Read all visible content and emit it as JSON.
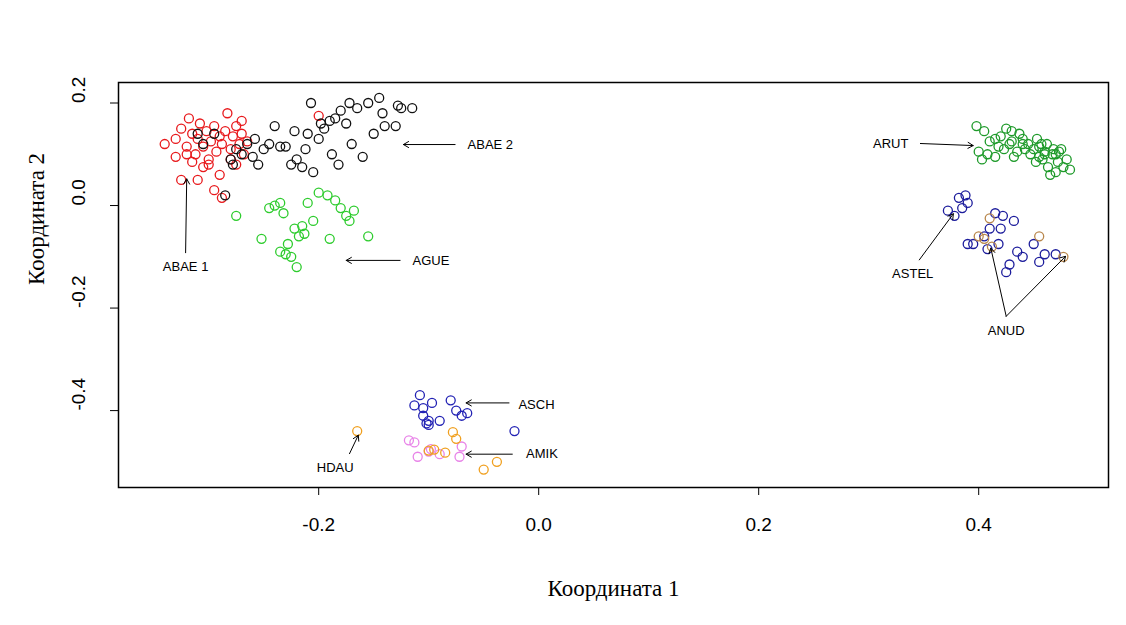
{
  "chart_data": {
    "type": "scatter",
    "x_label": "Координата 1",
    "y_label": "Координата 2",
    "xlim": [
      -0.382,
      0.518
    ],
    "ylim": [
      -0.55,
      0.24
    ],
    "xticks": [
      -0.2,
      {
        "value": 0,
        "label": "0.0"
      },
      0.2,
      0.4
    ],
    "yticks": [
      -0.4,
      -0.2,
      {
        "value": 0,
        "label": "0.0"
      },
      0.2
    ],
    "series": [
      {
        "name": "ABAE 1",
        "color": "#e8191c",
        "marker": "circle",
        "values": [
          [
            -0.34,
            0.12
          ],
          [
            -0.325,
            0.15
          ],
          [
            -0.32,
            0.115
          ],
          [
            -0.318,
            0.17
          ],
          [
            -0.315,
            0.14
          ],
          [
            -0.312,
            0.1
          ],
          [
            -0.31,
            0.13
          ],
          [
            -0.308,
            0.16
          ],
          [
            -0.305,
            0.115
          ],
          [
            -0.302,
            0.145
          ],
          [
            -0.3,
            0.09
          ],
          [
            -0.298,
            0.125
          ],
          [
            -0.295,
            0.155
          ],
          [
            -0.293,
            0.105
          ],
          [
            -0.29,
            0.135
          ],
          [
            -0.288,
            0.12
          ],
          [
            -0.285,
            0.145
          ],
          [
            -0.283,
            0.18
          ],
          [
            -0.28,
            0.11
          ],
          [
            -0.278,
            0.135
          ],
          [
            -0.275,
            0.155
          ],
          [
            -0.272,
            0.12
          ],
          [
            -0.27,
            0.14
          ],
          [
            -0.268,
            0.1
          ],
          [
            -0.265,
            0.125
          ],
          [
            -0.325,
            0.05
          ],
          [
            -0.31,
            0.05
          ],
          [
            -0.3,
            0.08
          ],
          [
            -0.295,
            0.03
          ],
          [
            -0.288,
            0.015
          ],
          [
            -0.32,
            0.1
          ],
          [
            -0.305,
            0.075
          ],
          [
            -0.29,
            0.06
          ],
          [
            -0.28,
            0.09
          ],
          [
            -0.275,
            0.08
          ],
          [
            -0.33,
            0.095
          ],
          [
            -0.33,
            0.13
          ],
          [
            -0.315,
            0.085
          ],
          [
            -0.27,
            0.165
          ],
          [
            -0.2,
            0.175
          ]
        ]
      },
      {
        "name": "ABAE 2",
        "color": "#111111",
        "marker": "circle",
        "values": [
          [
            -0.285,
            0.02
          ],
          [
            -0.28,
            0.09
          ],
          [
            -0.278,
            0.08
          ],
          [
            -0.275,
            0.11
          ],
          [
            -0.27,
            0.1
          ],
          [
            -0.265,
            0.12
          ],
          [
            -0.26,
            0.095
          ],
          [
            -0.258,
            0.13
          ],
          [
            -0.255,
            0.08
          ],
          [
            -0.25,
            0.11
          ],
          [
            -0.245,
            0.12
          ],
          [
            -0.24,
            0.155
          ],
          [
            -0.235,
            0.115
          ],
          [
            -0.23,
            0.115
          ],
          [
            -0.225,
            0.08
          ],
          [
            -0.222,
            0.145
          ],
          [
            -0.22,
            0.09
          ],
          [
            -0.215,
            0.075
          ],
          [
            -0.212,
            0.11
          ],
          [
            -0.21,
            0.14
          ],
          [
            -0.207,
            0.2
          ],
          [
            -0.205,
            0.065
          ],
          [
            -0.2,
            0.13
          ],
          [
            -0.198,
            0.16
          ],
          [
            -0.195,
            0.15
          ],
          [
            -0.19,
            0.165
          ],
          [
            -0.188,
            0.1
          ],
          [
            -0.185,
            0.17
          ],
          [
            -0.182,
            0.08
          ],
          [
            -0.18,
            0.185
          ],
          [
            -0.175,
            0.16
          ],
          [
            -0.172,
            0.2
          ],
          [
            -0.17,
            0.12
          ],
          [
            -0.165,
            0.19
          ],
          [
            -0.16,
            0.095
          ],
          [
            -0.155,
            0.2
          ],
          [
            -0.15,
            0.14
          ],
          [
            -0.145,
            0.21
          ],
          [
            -0.142,
            0.18
          ],
          [
            -0.14,
            0.155
          ],
          [
            -0.13,
            0.155
          ],
          [
            -0.128,
            0.195
          ],
          [
            -0.125,
            0.19
          ],
          [
            -0.115,
            0.19
          ],
          [
            -0.31,
            0.14
          ],
          [
            -0.305,
            0.12
          ],
          [
            -0.295,
            0.14
          ]
        ]
      },
      {
        "name": "AGUE",
        "color": "#2ecc2e",
        "marker": "circle",
        "values": [
          [
            -0.275,
            -0.02
          ],
          [
            -0.252,
            -0.065
          ],
          [
            -0.245,
            -0.005
          ],
          [
            -0.24,
            0.0
          ],
          [
            -0.235,
            0.005
          ],
          [
            -0.235,
            -0.09
          ],
          [
            -0.232,
            -0.015
          ],
          [
            -0.23,
            -0.095
          ],
          [
            -0.228,
            -0.075
          ],
          [
            -0.225,
            -0.1
          ],
          [
            -0.222,
            -0.045
          ],
          [
            -0.22,
            -0.12
          ],
          [
            -0.218,
            -0.06
          ],
          [
            -0.215,
            -0.04
          ],
          [
            -0.213,
            -0.055
          ],
          [
            -0.21,
            0.005
          ],
          [
            -0.205,
            -0.03
          ],
          [
            -0.2,
            0.025
          ],
          [
            -0.192,
            0.02
          ],
          [
            -0.19,
            -0.065
          ],
          [
            -0.185,
            0.01
          ],
          [
            -0.18,
            -0.005
          ],
          [
            -0.175,
            -0.02
          ],
          [
            -0.172,
            -0.03
          ],
          [
            -0.168,
            -0.01
          ],
          [
            -0.155,
            -0.06
          ]
        ]
      },
      {
        "name": "ARUT",
        "color": "#1e9a2a",
        "marker": "circle",
        "values": [
          [
            0.398,
            0.155
          ],
          [
            0.4,
            0.105
          ],
          [
            0.403,
            0.09
          ],
          [
            0.405,
            0.145
          ],
          [
            0.408,
            0.1
          ],
          [
            0.41,
            0.125
          ],
          [
            0.415,
            0.095
          ],
          [
            0.418,
            0.115
          ],
          [
            0.42,
            0.135
          ],
          [
            0.423,
            0.11
          ],
          [
            0.425,
            0.15
          ],
          [
            0.428,
            0.12
          ],
          [
            0.43,
            0.125
          ],
          [
            0.432,
            0.095
          ],
          [
            0.435,
            0.105
          ],
          [
            0.437,
            0.14
          ],
          [
            0.44,
            0.13
          ],
          [
            0.442,
            0.11
          ],
          [
            0.445,
            0.12
          ],
          [
            0.447,
            0.1
          ],
          [
            0.45,
            0.11
          ],
          [
            0.452,
            0.085
          ],
          [
            0.453,
            0.13
          ],
          [
            0.455,
            0.115
          ],
          [
            0.457,
            0.12
          ],
          [
            0.458,
            0.09
          ],
          [
            0.46,
            0.105
          ],
          [
            0.462,
            0.12
          ],
          [
            0.463,
            0.075
          ],
          [
            0.465,
            0.06
          ],
          [
            0.467,
            0.1
          ],
          [
            0.468,
            0.11
          ],
          [
            0.47,
            0.065
          ],
          [
            0.472,
            0.085
          ],
          [
            0.473,
            0.105
          ],
          [
            0.475,
            0.11
          ],
          [
            0.477,
            0.075
          ],
          [
            0.48,
            0.09
          ],
          [
            0.483,
            0.07
          ],
          [
            0.43,
            0.145
          ],
          [
            0.44,
            0.12
          ],
          [
            0.46,
            0.1
          ],
          [
            0.455,
            0.095
          ],
          [
            0.47,
            0.1
          ],
          [
            0.415,
            0.13
          ]
        ]
      },
      {
        "name": "ASTEL",
        "color": "#1c1c9c",
        "marker": "circle",
        "values": [
          [
            0.372,
            -0.01
          ],
          [
            0.378,
            -0.02
          ],
          [
            0.382,
            0.015
          ],
          [
            0.385,
            -0.005
          ],
          [
            0.388,
            0.02
          ],
          [
            0.39,
            0.005
          ],
          [
            0.39,
            -0.075
          ],
          [
            0.395,
            -0.075
          ],
          [
            0.405,
            -0.06
          ],
          [
            0.408,
            -0.085
          ],
          [
            0.41,
            -0.045
          ],
          [
            0.415,
            -0.015
          ],
          [
            0.418,
            -0.075
          ],
          [
            0.42,
            -0.045
          ],
          [
            0.422,
            -0.02
          ],
          [
            0.425,
            -0.13
          ],
          [
            0.428,
            -0.115
          ],
          [
            0.432,
            -0.03
          ],
          [
            0.435,
            -0.09
          ],
          [
            0.44,
            -0.1
          ],
          [
            0.45,
            -0.075
          ],
          [
            0.455,
            -0.11
          ],
          [
            0.46,
            -0.095
          ],
          [
            0.47,
            -0.095
          ]
        ]
      },
      {
        "name": "ANUD",
        "color": "#b8864b",
        "marker": "circle",
        "values": [
          [
            0.4,
            -0.06
          ],
          [
            0.405,
            -0.065
          ],
          [
            0.41,
            -0.025
          ],
          [
            0.412,
            -0.08
          ],
          [
            0.455,
            -0.06
          ],
          [
            0.477,
            -0.1
          ]
        ]
      },
      {
        "name": "ASCH",
        "color": "#2222b4",
        "marker": "circle",
        "values": [
          [
            -0.113,
            -0.39
          ],
          [
            -0.108,
            -0.37
          ],
          [
            -0.105,
            -0.41
          ],
          [
            -0.102,
            -0.425
          ],
          [
            -0.1,
            -0.428
          ],
          [
            -0.097,
            -0.385
          ],
          [
            -0.09,
            -0.42
          ],
          [
            -0.08,
            -0.38
          ],
          [
            -0.075,
            -0.4
          ],
          [
            -0.07,
            -0.41
          ],
          [
            -0.065,
            -0.405
          ],
          [
            -0.022,
            -0.44
          ],
          [
            -0.1,
            -0.42
          ],
          [
            -0.105,
            -0.395
          ]
        ]
      },
      {
        "name": "AMIK",
        "color": "#e884e8",
        "marker": "circle",
        "values": [
          [
            -0.118,
            -0.458
          ],
          [
            -0.113,
            -0.462
          ],
          [
            -0.11,
            -0.49
          ],
          [
            -0.1,
            -0.48
          ],
          [
            -0.098,
            -0.475
          ],
          [
            -0.09,
            -0.485
          ],
          [
            -0.072,
            -0.49
          ],
          [
            -0.07,
            -0.47
          ]
        ]
      },
      {
        "name": "HDAU",
        "color": "#f0a020",
        "marker": "circle",
        "values": [
          [
            -0.165,
            -0.44
          ],
          [
            -0.1,
            -0.478
          ],
          [
            -0.095,
            -0.476
          ],
          [
            -0.085,
            -0.482
          ],
          [
            -0.078,
            -0.442
          ],
          [
            -0.075,
            -0.455
          ],
          [
            -0.05,
            -0.515
          ],
          [
            -0.038,
            -0.5
          ]
        ]
      }
    ],
    "annotations": [
      {
        "text": "ABAE 2"
      },
      {
        "text": "ABAE 1"
      },
      {
        "text": "AGUE"
      },
      {
        "text": "ARUT"
      },
      {
        "text": "ASTEL"
      },
      {
        "text": "ANUD"
      },
      {
        "text": "ASCH"
      },
      {
        "text": "AMIK"
      },
      {
        "text": "HDAU"
      }
    ]
  }
}
